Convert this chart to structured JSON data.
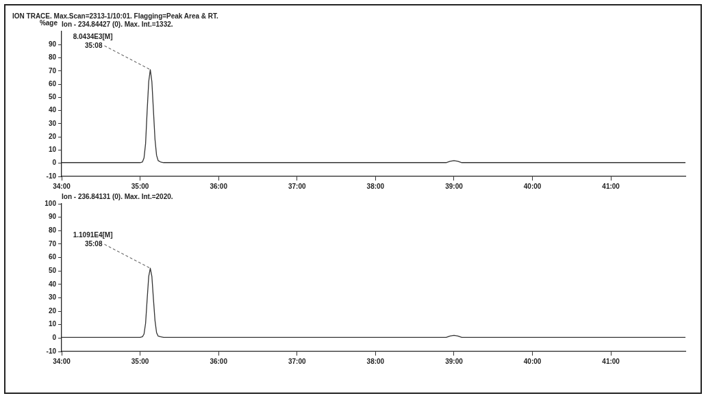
{
  "chart_data": [
    {
      "type": "line",
      "title": "ION TRACE. Max.Scan=2313-1/10:01. Flagging=Peak Area & RT.",
      "subtitle": "Ion - 234.84427 (0). Max. Int.=1332.",
      "ylabel": "%age",
      "x": [
        34,
        34.5,
        35,
        35.03,
        35.05,
        35.07,
        35.09,
        35.11,
        35.13,
        35.15,
        35.17,
        35.19,
        35.21,
        35.23,
        35.26,
        35.3,
        35.5,
        36,
        36.5,
        37,
        37.5,
        38,
        38.5,
        38.9,
        38.95,
        39,
        39.05,
        39.1,
        39.5,
        40,
        40.5,
        41,
        41.5,
        41.95
      ],
      "series": [
        {
          "color": "#333333",
          "values": [
            0.5,
            0.5,
            0.5,
            1,
            4,
            15,
            40,
            62,
            71,
            62,
            40,
            18,
            6,
            2,
            1,
            0.5,
            0.5,
            0.5,
            0.5,
            0.5,
            0.5,
            0.5,
            0.5,
            0.5,
            1.5,
            2,
            1.5,
            0.5,
            0.5,
            0.5,
            0.5,
            0.5,
            0.5,
            0.5
          ]
        }
      ],
      "xlim": [
        34,
        41.95
      ],
      "xticks": [
        {
          "value": 34,
          "label": "34:00"
        },
        {
          "value": 35,
          "label": "35:00"
        },
        {
          "value": 36,
          "label": "36:00"
        },
        {
          "value": 37,
          "label": "37:00"
        },
        {
          "value": 38,
          "label": "38:00"
        },
        {
          "value": 39,
          "label": "39:00"
        },
        {
          "value": 40,
          "label": "40:00"
        },
        {
          "value": 41,
          "label": "41:00"
        }
      ],
      "ylim": [
        -10,
        100
      ],
      "yticks": [
        -10,
        0,
        10,
        20,
        30,
        40,
        50,
        60,
        70,
        80,
        90
      ],
      "annotations": [
        {
          "text": "8.0434E3[M]\n35:08",
          "x": 35.13,
          "y": 71
        }
      ],
      "grid": false,
      "legend": false
    },
    {
      "type": "line",
      "subtitle": "Ion - 236.84131 (0). Max. Int.=2020.",
      "x": [
        34,
        34.5,
        35,
        35.03,
        35.05,
        35.07,
        35.09,
        35.11,
        35.13,
        35.15,
        35.17,
        35.19,
        35.21,
        35.23,
        35.26,
        35.3,
        35.5,
        36,
        36.5,
        37,
        37.5,
        38,
        38.5,
        38.9,
        38.95,
        39,
        39.05,
        39.1,
        39.5,
        40,
        40.5,
        41,
        41.5,
        41.95
      ],
      "series": [
        {
          "color": "#333333",
          "values": [
            0.5,
            0.5,
            0.5,
            1,
            3,
            11,
            29,
            46,
            52,
            46,
            29,
            13,
            4,
            1.5,
            1,
            0.5,
            0.5,
            0.5,
            0.5,
            0.5,
            0.5,
            0.5,
            0.5,
            0.5,
            1.5,
            2,
            1.5,
            0.5,
            0.5,
            0.5,
            0.5,
            0.5,
            0.5,
            0.5
          ]
        }
      ],
      "xlim": [
        34,
        41.95
      ],
      "xticks": [
        {
          "value": 34,
          "label": "34:00"
        },
        {
          "value": 35,
          "label": "35:00"
        },
        {
          "value": 36,
          "label": "36:00"
        },
        {
          "value": 37,
          "label": "37:00"
        },
        {
          "value": 38,
          "label": "38:00"
        },
        {
          "value": 39,
          "label": "39:00"
        },
        {
          "value": 40,
          "label": "40:00"
        },
        {
          "value": 41,
          "label": "41:00"
        }
      ],
      "ylim": [
        -10,
        100
      ],
      "yticks": [
        -10,
        0,
        10,
        20,
        30,
        40,
        50,
        60,
        70,
        80,
        90,
        100
      ],
      "annotations": [
        {
          "text": "1.1091E4[M]\n35:08",
          "x": 35.13,
          "y": 52
        }
      ],
      "grid": false,
      "legend": false
    }
  ]
}
